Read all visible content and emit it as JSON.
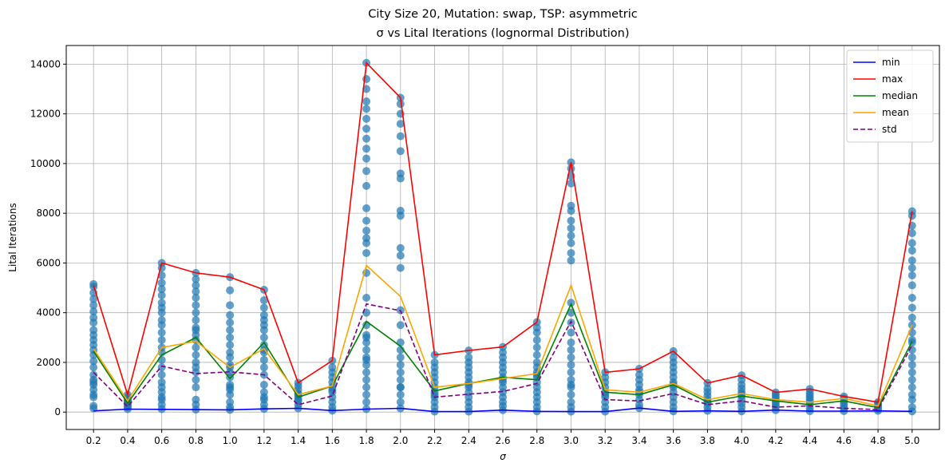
{
  "chart_data": {
    "type": "line",
    "title_line1": "City Size 20, Mutation: swap, TSP: asymmetric",
    "title_line2": "σ vs Lital Iterations (lognormal Distribution)",
    "xlabel": "σ",
    "ylabel": "Lital Iterations",
    "x": [
      0.2,
      0.4,
      0.6,
      0.8,
      1.0,
      1.2,
      1.4,
      1.6,
      1.8,
      2.0,
      2.2,
      2.4,
      2.6,
      2.8,
      3.0,
      3.2,
      3.4,
      3.6,
      3.8,
      4.0,
      4.2,
      4.4,
      4.6,
      4.8,
      5.0
    ],
    "x_tick_labels": [
      "0.2",
      "0.4",
      "0.6",
      "0.8",
      "1.0",
      "1.2",
      "1.4",
      "1.6",
      "1.8",
      "2.0",
      "2.2",
      "2.4",
      "2.6",
      "2.8",
      "3.0",
      "3.2",
      "3.4",
      "3.6",
      "3.8",
      "4.0",
      "4.2",
      "4.4",
      "4.6",
      "4.8",
      "5.0"
    ],
    "y_ticks": [
      0,
      2000,
      4000,
      6000,
      8000,
      10000,
      12000,
      14000
    ],
    "y_tick_labels": [
      "0",
      "2000",
      "4000",
      "6000",
      "8000",
      "10000",
      "12000",
      "14000"
    ],
    "xlim": [
      0.04,
      5.16
    ],
    "ylim": [
      -700,
      14750
    ],
    "grid": true,
    "legend_position": "top-right",
    "series": [
      {
        "name": "min",
        "color": "#0000ff",
        "dash": false,
        "values": [
          50,
          120,
          110,
          100,
          90,
          130,
          150,
          60,
          120,
          150,
          20,
          20,
          80,
          30,
          20,
          20,
          160,
          30,
          50,
          30,
          80,
          40,
          40,
          50,
          30
        ]
      },
      {
        "name": "max",
        "color": "#ff0000",
        "dash": false,
        "values": [
          5100,
          700,
          6000,
          5600,
          5430,
          4920,
          1180,
          2070,
          14050,
          12650,
          2300,
          2480,
          2620,
          3620,
          10050,
          1600,
          1740,
          2450,
          1170,
          1480,
          790,
          930,
          630,
          400,
          8080
        ]
      },
      {
        "name": "median",
        "color": "#008000",
        "dash": false,
        "values": [
          2450,
          350,
          2300,
          3000,
          1350,
          2800,
          600,
          1050,
          3650,
          2650,
          850,
          1150,
          1400,
          1300,
          4350,
          800,
          700,
          1100,
          400,
          650,
          450,
          300,
          450,
          180,
          2850
        ]
      },
      {
        "name": "mean",
        "color": "#ffa500",
        "dash": false,
        "values": [
          2550,
          450,
          2600,
          2850,
          1800,
          2550,
          700,
          1050,
          5900,
          4650,
          1000,
          1150,
          1350,
          1550,
          5100,
          900,
          800,
          1150,
          500,
          750,
          500,
          400,
          550,
          250,
          3500
        ]
      },
      {
        "name": "std",
        "color": "#800080",
        "dash": true,
        "values": [
          1600,
          220,
          1850,
          1550,
          1620,
          1500,
          300,
          650,
          4350,
          4080,
          600,
          720,
          830,
          1150,
          3650,
          500,
          450,
          750,
          300,
          450,
          200,
          250,
          150,
          100,
          2700
        ]
      }
    ],
    "scatter_color": "#1f77b4",
    "scatter_points": [
      [
        0.2,
        [
          150,
          250,
          700,
          900,
          1100,
          1300,
          1500,
          1800,
          2050,
          2300,
          2500,
          2700,
          2900,
          3100,
          3300,
          3600,
          3800,
          4050,
          4300,
          4550,
          4800,
          5050,
          5150,
          1200,
          600
        ]
      ],
      [
        0.4,
        [
          120,
          200,
          300,
          400,
          500,
          600,
          700,
          350,
          250,
          450
        ]
      ],
      [
        0.6,
        [
          120,
          300,
          500,
          800,
          1000,
          1200,
          1500,
          1800,
          2100,
          2400,
          2600,
          2900,
          3200,
          3500,
          3700,
          4000,
          4200,
          4400,
          4700,
          4950,
          5200,
          5500,
          5800,
          6000,
          600
        ]
      ],
      [
        0.8,
        [
          100,
          300,
          500,
          1000,
          1300,
          1600,
          2000,
          2300,
          2600,
          2900,
          3100,
          3400,
          3700,
          4000,
          4300,
          4600,
          4850,
          5100,
          5350,
          5600,
          1800,
          3300
        ]
      ],
      [
        1.0,
        [
          90,
          200,
          400,
          700,
          900,
          1100,
          1400,
          1600,
          1900,
          2200,
          2400,
          2700,
          3000,
          3300,
          3600,
          3900,
          4300,
          4900,
          5430,
          1000,
          1800
        ]
      ],
      [
        1.2,
        [
          130,
          300,
          500,
          800,
          1100,
          1500,
          1800,
          2100,
          2400,
          2700,
          3000,
          3300,
          3500,
          3700,
          3900,
          4200,
          4500,
          4920,
          2500,
          600
        ]
      ],
      [
        1.4,
        [
          150,
          300,
          450,
          600,
          750,
          900,
          1050,
          1180,
          500,
          700
        ]
      ],
      [
        1.6,
        [
          60,
          200,
          400,
          600,
          800,
          1000,
          1200,
          1400,
          1600,
          1800,
          2070,
          900
        ]
      ],
      [
        1.8,
        [
          120,
          400,
          700,
          1000,
          1300,
          1600,
          1900,
          2200,
          2500,
          2800,
          3100,
          3500,
          4000,
          4600,
          5600,
          6400,
          6800,
          7000,
          7300,
          7700,
          8200,
          9100,
          9700,
          10200,
          10600,
          11000,
          11400,
          11800,
          12200,
          12500,
          13000,
          13400,
          14050,
          2100,
          3000
        ]
      ],
      [
        2.0,
        [
          150,
          400,
          700,
          1000,
          1300,
          1600,
          1900,
          2200,
          2500,
          2800,
          3500,
          4100,
          5800,
          6300,
          6600,
          7900,
          8100,
          9400,
          9600,
          10500,
          11100,
          11600,
          12000,
          12400,
          12650,
          1000
        ]
      ],
      [
        2.2,
        [
          20,
          200,
          400,
          600,
          800,
          1000,
          1200,
          1400,
          1600,
          1800,
          2000,
          2300,
          700
        ]
      ],
      [
        2.4,
        [
          20,
          200,
          400,
          600,
          800,
          1000,
          1200,
          1400,
          1600,
          1800,
          2000,
          2200,
          2480,
          1100
        ]
      ],
      [
        2.6,
        [
          80,
          250,
          400,
          600,
          800,
          1000,
          1200,
          1400,
          1600,
          1800,
          2000,
          2200,
          2400,
          2620,
          1300
        ]
      ],
      [
        2.8,
        [
          30,
          200,
          400,
          600,
          800,
          1000,
          1200,
          1400,
          1600,
          1800,
          2000,
          2300,
          2600,
          2900,
          3200,
          3400,
          3620,
          1500
        ]
      ],
      [
        3.0,
        [
          20,
          200,
          400,
          700,
          1000,
          1300,
          1600,
          1900,
          2200,
          2500,
          2800,
          3200,
          3600,
          4000,
          4400,
          6100,
          6400,
          6800,
          7100,
          7400,
          7700,
          8100,
          8300,
          9200,
          9500,
          9800,
          10050,
          1100
        ]
      ],
      [
        3.2,
        [
          20,
          200,
          400,
          600,
          800,
          1000,
          1200,
          1400,
          1600,
          700
        ]
      ],
      [
        3.4,
        [
          160,
          300,
          500,
          700,
          900,
          1100,
          1300,
          1500,
          1740,
          800
        ]
      ],
      [
        3.6,
        [
          30,
          200,
          400,
          600,
          800,
          1000,
          1200,
          1400,
          1600,
          1800,
          2000,
          2200,
          2450,
          1100
        ]
      ],
      [
        3.8,
        [
          50,
          200,
          350,
          500,
          650,
          800,
          950,
          1170,
          400
        ]
      ],
      [
        4.0,
        [
          30,
          200,
          350,
          500,
          650,
          800,
          950,
          1100,
          1300,
          1480,
          700
        ]
      ],
      [
        4.2,
        [
          80,
          200,
          300,
          400,
          500,
          600,
          700,
          790
        ]
      ],
      [
        4.4,
        [
          40,
          150,
          300,
          400,
          500,
          600,
          700,
          800,
          930
        ]
      ],
      [
        4.6,
        [
          40,
          150,
          250,
          350,
          450,
          550,
          630
        ]
      ],
      [
        4.8,
        [
          50,
          120,
          200,
          280,
          350,
          400
        ]
      ],
      [
        5.0,
        [
          30,
          200,
          500,
          700,
          1000,
          1300,
          1600,
          1900,
          2200,
          2500,
          2800,
          3200,
          3500,
          3800,
          4200,
          4600,
          5100,
          5500,
          5800,
          6100,
          6500,
          6800,
          7200,
          7500,
          7900,
          8080,
          2900
        ]
      ]
    ]
  }
}
